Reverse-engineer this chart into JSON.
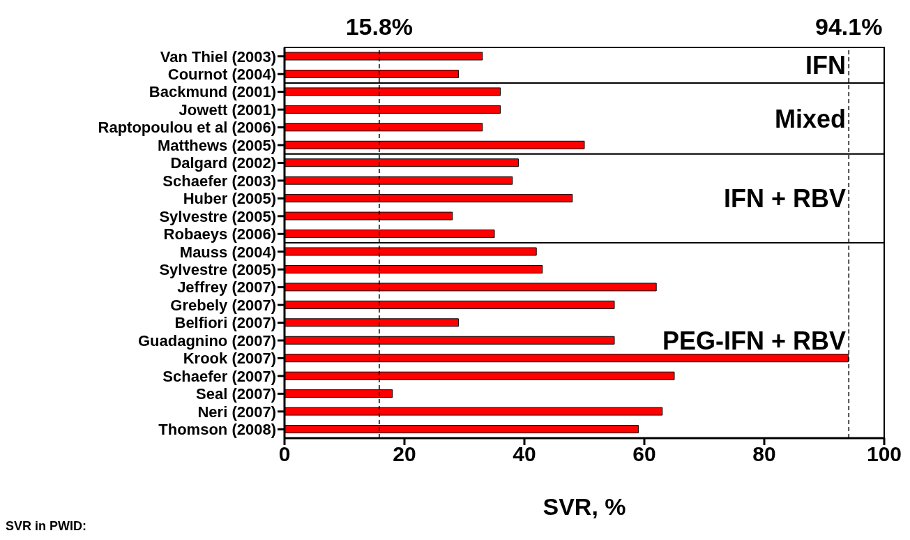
{
  "chart_data": {
    "type": "bar",
    "orientation": "horizontal",
    "xlabel": "SVR, %",
    "categories": [
      "Van Thiel (2003)",
      "Cournot (2004)",
      "Backmund (2001)",
      "Jowett (2001)",
      "Raptopoulou et al (2006)",
      "Matthews (2005)",
      "Dalgard (2002)",
      "Schaefer (2003)",
      "Huber (2005)",
      "Sylvestre (2005)",
      "Robaeys (2006)",
      "Mauss (2004)",
      "Sylvestre (2005)",
      "Jeffrey (2007)",
      "Grebely (2007)",
      "Belfiori (2007)",
      "Guadagnino (2007)",
      "Krook (2007)",
      "Schaefer (2007)",
      "Seal (2007)",
      "Neri (2007)",
      "Thomson (2008)"
    ],
    "values": [
      33,
      29,
      36,
      36,
      33,
      50,
      39,
      38,
      48,
      28,
      35,
      42,
      43,
      62,
      55,
      29,
      55,
      94,
      65,
      18,
      63,
      59
    ],
    "color": "#ff0000",
    "xlim": [
      0,
      100
    ],
    "xticks": [
      0,
      20,
      40,
      60,
      80,
      100
    ],
    "ref_lines": [
      {
        "axis": "x",
        "value": 15.8,
        "label": "15.8%",
        "line_style": "dashed"
      },
      {
        "axis": "x",
        "value": 94.1,
        "label": "94.1%",
        "line_style": "dashed"
      }
    ],
    "bands": [
      {
        "axis": "y",
        "from": "Van Thiel (2003)",
        "to": "Cournot (2004)",
        "label": "IFN",
        "color": "#ffffff"
      },
      {
        "axis": "y",
        "from": "Backmund (2001)",
        "to": "Matthews (2005)",
        "label": "Mixed",
        "color": "#ffffff"
      },
      {
        "axis": "y",
        "from": "Dalgard (2002)",
        "to": "Robaeys (2006)",
        "label": "IFN + RBV",
        "color": "#ffffff"
      },
      {
        "axis": "y",
        "from": "Mauss (2004)",
        "to": "Thomson (2008)",
        "label": "PEG-IFN + RBV",
        "color": "#ffffff"
      }
    ],
    "annotations": [
      "SVR in PWID:"
    ],
    "legend": false
  }
}
